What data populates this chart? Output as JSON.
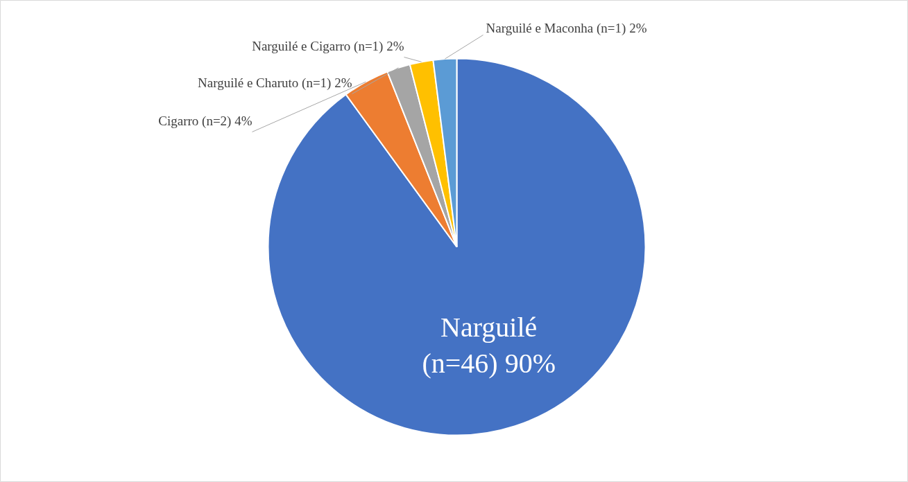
{
  "chart_data": {
    "type": "pie",
    "categories": [
      "Narguilé",
      "Cigarro",
      "Narguilé e Charuto",
      "Narguilé e Cigarro",
      "Narguilé e Maconha"
    ],
    "values": [
      90,
      4,
      2,
      2,
      2
    ],
    "colors": [
      "#4472c4",
      "#ed7d31",
      "#a5a5a5",
      "#ffc000",
      "#5b9bd5"
    ],
    "value_labels": [
      "(n=46) 90%",
      "(n=2) 4%",
      "(n=1) 2%",
      "(n=1) 2%",
      "(n=1) 2%"
    ]
  }
}
